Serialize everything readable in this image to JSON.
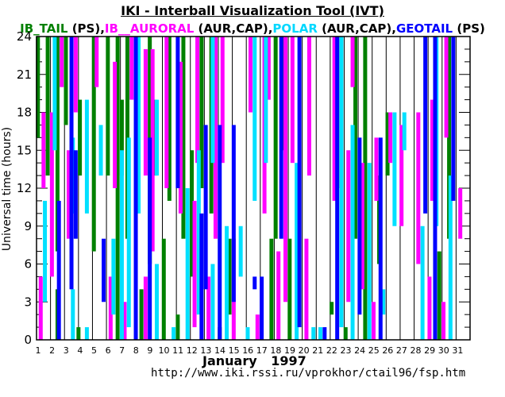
{
  "title": "IKI - Interball Visualization Tool (IVT)",
  "legend": [
    {
      "name": "IB_TAIL",
      "suffix": " (PS),",
      "color": "#008000"
    },
    {
      "name": "IB__AURORAL",
      "suffix": " (AUR,CAP),",
      "color": "#ff00ff"
    },
    {
      "name": "POLAR",
      "suffix": " (AUR,CAP),",
      "color": "#00e0ff"
    },
    {
      "name": "GEOTAIL",
      "suffix": " (PS)",
      "color": "#0000ff"
    }
  ],
  "ylabel": "Universal time  (hours)",
  "xlabel": "January  1997",
  "url": "http://www.iki.rssi.ru/vprokhor/ctail96/fsp.htm",
  "chart_data": {
    "type": "bar",
    "orientation": "vertical-intervals",
    "title": "IKI - Interball Visualization Tool (IVT)",
    "xlabel": "January 1997",
    "ylabel": "Universal time (hours)",
    "x_ticks": [
      "1",
      "2",
      "3",
      "4",
      "5",
      "6",
      "7",
      "8",
      "9",
      "10",
      "11",
      "12",
      "13",
      "14",
      "15",
      "16",
      "17",
      "18",
      "19",
      "20",
      "21",
      "22",
      "23",
      "24",
      "25",
      "26",
      "27",
      "28",
      "29",
      "30",
      "31"
    ],
    "y_ticks": [
      "0",
      "3",
      "6",
      "9",
      "12",
      "15",
      "18",
      "21",
      "24"
    ],
    "ylim": [
      0,
      24
    ],
    "xlim": [
      1,
      32
    ],
    "grid": true,
    "series": [
      {
        "name": "IB_TAIL",
        "color": "#008000",
        "segments": [
          [
            1.1,
            16,
            24
          ],
          [
            1.8,
            13,
            24
          ],
          [
            2.5,
            0,
            4
          ],
          [
            2.5,
            7,
            24
          ],
          [
            3.1,
            17,
            24
          ],
          [
            4.0,
            0,
            1
          ],
          [
            4.1,
            13,
            19
          ],
          [
            5.1,
            7,
            24
          ],
          [
            6.1,
            13,
            24
          ],
          [
            6.8,
            0,
            24
          ],
          [
            7.1,
            13,
            19
          ],
          [
            7.5,
            8,
            24
          ],
          [
            8.5,
            0,
            4
          ],
          [
            9.1,
            6,
            24
          ],
          [
            9.5,
            13,
            19
          ],
          [
            10.1,
            0,
            8
          ],
          [
            10.5,
            11,
            24
          ],
          [
            11.1,
            0,
            2
          ],
          [
            11.5,
            8,
            24
          ],
          [
            12.1,
            5,
            15
          ],
          [
            12.8,
            12,
            24
          ],
          [
            13.5,
            10,
            24
          ],
          [
            14.1,
            0,
            1
          ],
          [
            14.8,
            2,
            8
          ],
          [
            17.8,
            0,
            8
          ],
          [
            18.1,
            8,
            24
          ],
          [
            18.6,
            15,
            24
          ],
          [
            19.1,
            0,
            8
          ],
          [
            22.1,
            2,
            3
          ],
          [
            22.5,
            12,
            24
          ],
          [
            23.1,
            0,
            1
          ],
          [
            23.8,
            8,
            24
          ],
          [
            24.5,
            0,
            24
          ],
          [
            25.5,
            6,
            13
          ],
          [
            26.1,
            13,
            18
          ],
          [
            29.8,
            0,
            7
          ],
          [
            30.5,
            8,
            24
          ]
        ]
      },
      {
        "name": "IB__AURORAL",
        "color": "#ff00ff",
        "segments": [
          [
            1.3,
            0,
            5
          ],
          [
            1.5,
            12,
            18
          ],
          [
            2.1,
            5,
            18
          ],
          [
            2.8,
            20,
            24
          ],
          [
            3.3,
            8,
            15
          ],
          [
            3.8,
            18,
            24
          ],
          [
            5.3,
            20,
            24
          ],
          [
            6.3,
            0,
            5
          ],
          [
            6.6,
            12,
            22
          ],
          [
            7.3,
            0,
            3
          ],
          [
            7.8,
            19,
            24
          ],
          [
            8.8,
            0,
            5
          ],
          [
            8.8,
            13,
            23
          ],
          [
            9.3,
            7,
            23
          ],
          [
            10.3,
            12,
            24
          ],
          [
            11.3,
            10,
            22
          ],
          [
            12.3,
            1,
            11
          ],
          [
            12.5,
            14,
            24
          ],
          [
            13.3,
            0,
            5
          ],
          [
            13.8,
            8,
            24
          ],
          [
            14.3,
            14,
            24
          ],
          [
            15.1,
            0,
            8
          ],
          [
            16.3,
            18,
            24
          ],
          [
            16.8,
            0,
            2
          ],
          [
            17.3,
            10,
            24
          ],
          [
            17.6,
            19,
            24
          ],
          [
            18.3,
            0,
            7
          ],
          [
            18.8,
            3,
            24
          ],
          [
            19.3,
            14,
            24
          ],
          [
            20.3,
            0,
            8
          ],
          [
            20.5,
            13,
            24
          ],
          [
            22.3,
            11,
            24
          ],
          [
            23.3,
            3,
            15
          ],
          [
            23.6,
            20,
            24
          ],
          [
            24.3,
            4,
            14
          ],
          [
            25.1,
            0,
            3
          ],
          [
            25.3,
            11,
            16
          ],
          [
            26.3,
            14,
            18
          ],
          [
            27.1,
            9,
            17
          ],
          [
            28.3,
            6,
            18
          ],
          [
            29.1,
            0,
            5
          ],
          [
            29.3,
            11,
            19
          ],
          [
            30.1,
            0,
            3
          ],
          [
            30.3,
            16,
            24
          ],
          [
            31.3,
            8,
            12
          ]
        ]
      },
      {
        "name": "POLAR",
        "color": "#00e0ff",
        "segments": [
          [
            1.6,
            3,
            11
          ],
          [
            2.3,
            15,
            24
          ],
          [
            3.6,
            0,
            4
          ],
          [
            3.6,
            10,
            16
          ],
          [
            4.6,
            0,
            1
          ],
          [
            4.6,
            10,
            19
          ],
          [
            5.6,
            13,
            17
          ],
          [
            6.5,
            2,
            8
          ],
          [
            7.1,
            0,
            15
          ],
          [
            7.6,
            1,
            16
          ],
          [
            8.3,
            10,
            24
          ],
          [
            9.6,
            0,
            6
          ],
          [
            9.6,
            13,
            19
          ],
          [
            10.8,
            0,
            1
          ],
          [
            11.8,
            0,
            12
          ],
          [
            12.6,
            2,
            15
          ],
          [
            13.6,
            0,
            6
          ],
          [
            13.6,
            14,
            24
          ],
          [
            14.6,
            0,
            9
          ],
          [
            15.6,
            5,
            9
          ],
          [
            16.1,
            0,
            1
          ],
          [
            16.6,
            11,
            24
          ],
          [
            17.4,
            14,
            24
          ],
          [
            19.6,
            0,
            14
          ],
          [
            20.8,
            0,
            1
          ],
          [
            21.3,
            0,
            1
          ],
          [
            22.8,
            1,
            24
          ],
          [
            23.6,
            0,
            17
          ],
          [
            24.8,
            0,
            14
          ],
          [
            25.8,
            2,
            4
          ],
          [
            26.6,
            9,
            18
          ],
          [
            27.3,
            15,
            18
          ],
          [
            28.6,
            0,
            9
          ],
          [
            29.6,
            9,
            24
          ],
          [
            30.6,
            0,
            13
          ]
        ]
      },
      {
        "name": "GEOTAIL",
        "color": "#0000ff",
        "segments": [
          [
            2.6,
            0,
            11
          ],
          [
            3.5,
            4,
            24
          ],
          [
            3.8,
            8,
            15
          ],
          [
            5.8,
            3,
            8
          ],
          [
            8.1,
            0,
            24
          ],
          [
            9.1,
            0,
            16
          ],
          [
            11.1,
            12,
            24
          ],
          [
            12.8,
            0,
            10
          ],
          [
            13.1,
            4,
            17
          ],
          [
            14.1,
            0,
            17
          ],
          [
            15.1,
            3,
            17
          ],
          [
            16.6,
            4,
            5
          ],
          [
            17.1,
            0,
            5
          ],
          [
            18.5,
            8,
            24
          ],
          [
            19.8,
            1,
            24
          ],
          [
            21.6,
            0,
            1
          ],
          [
            22.5,
            0,
            24
          ],
          [
            24.1,
            2,
            16
          ],
          [
            25.6,
            0,
            16
          ],
          [
            28.8,
            10,
            24
          ],
          [
            29.5,
            0,
            24
          ],
          [
            30.8,
            11,
            24
          ]
        ]
      }
    ]
  }
}
